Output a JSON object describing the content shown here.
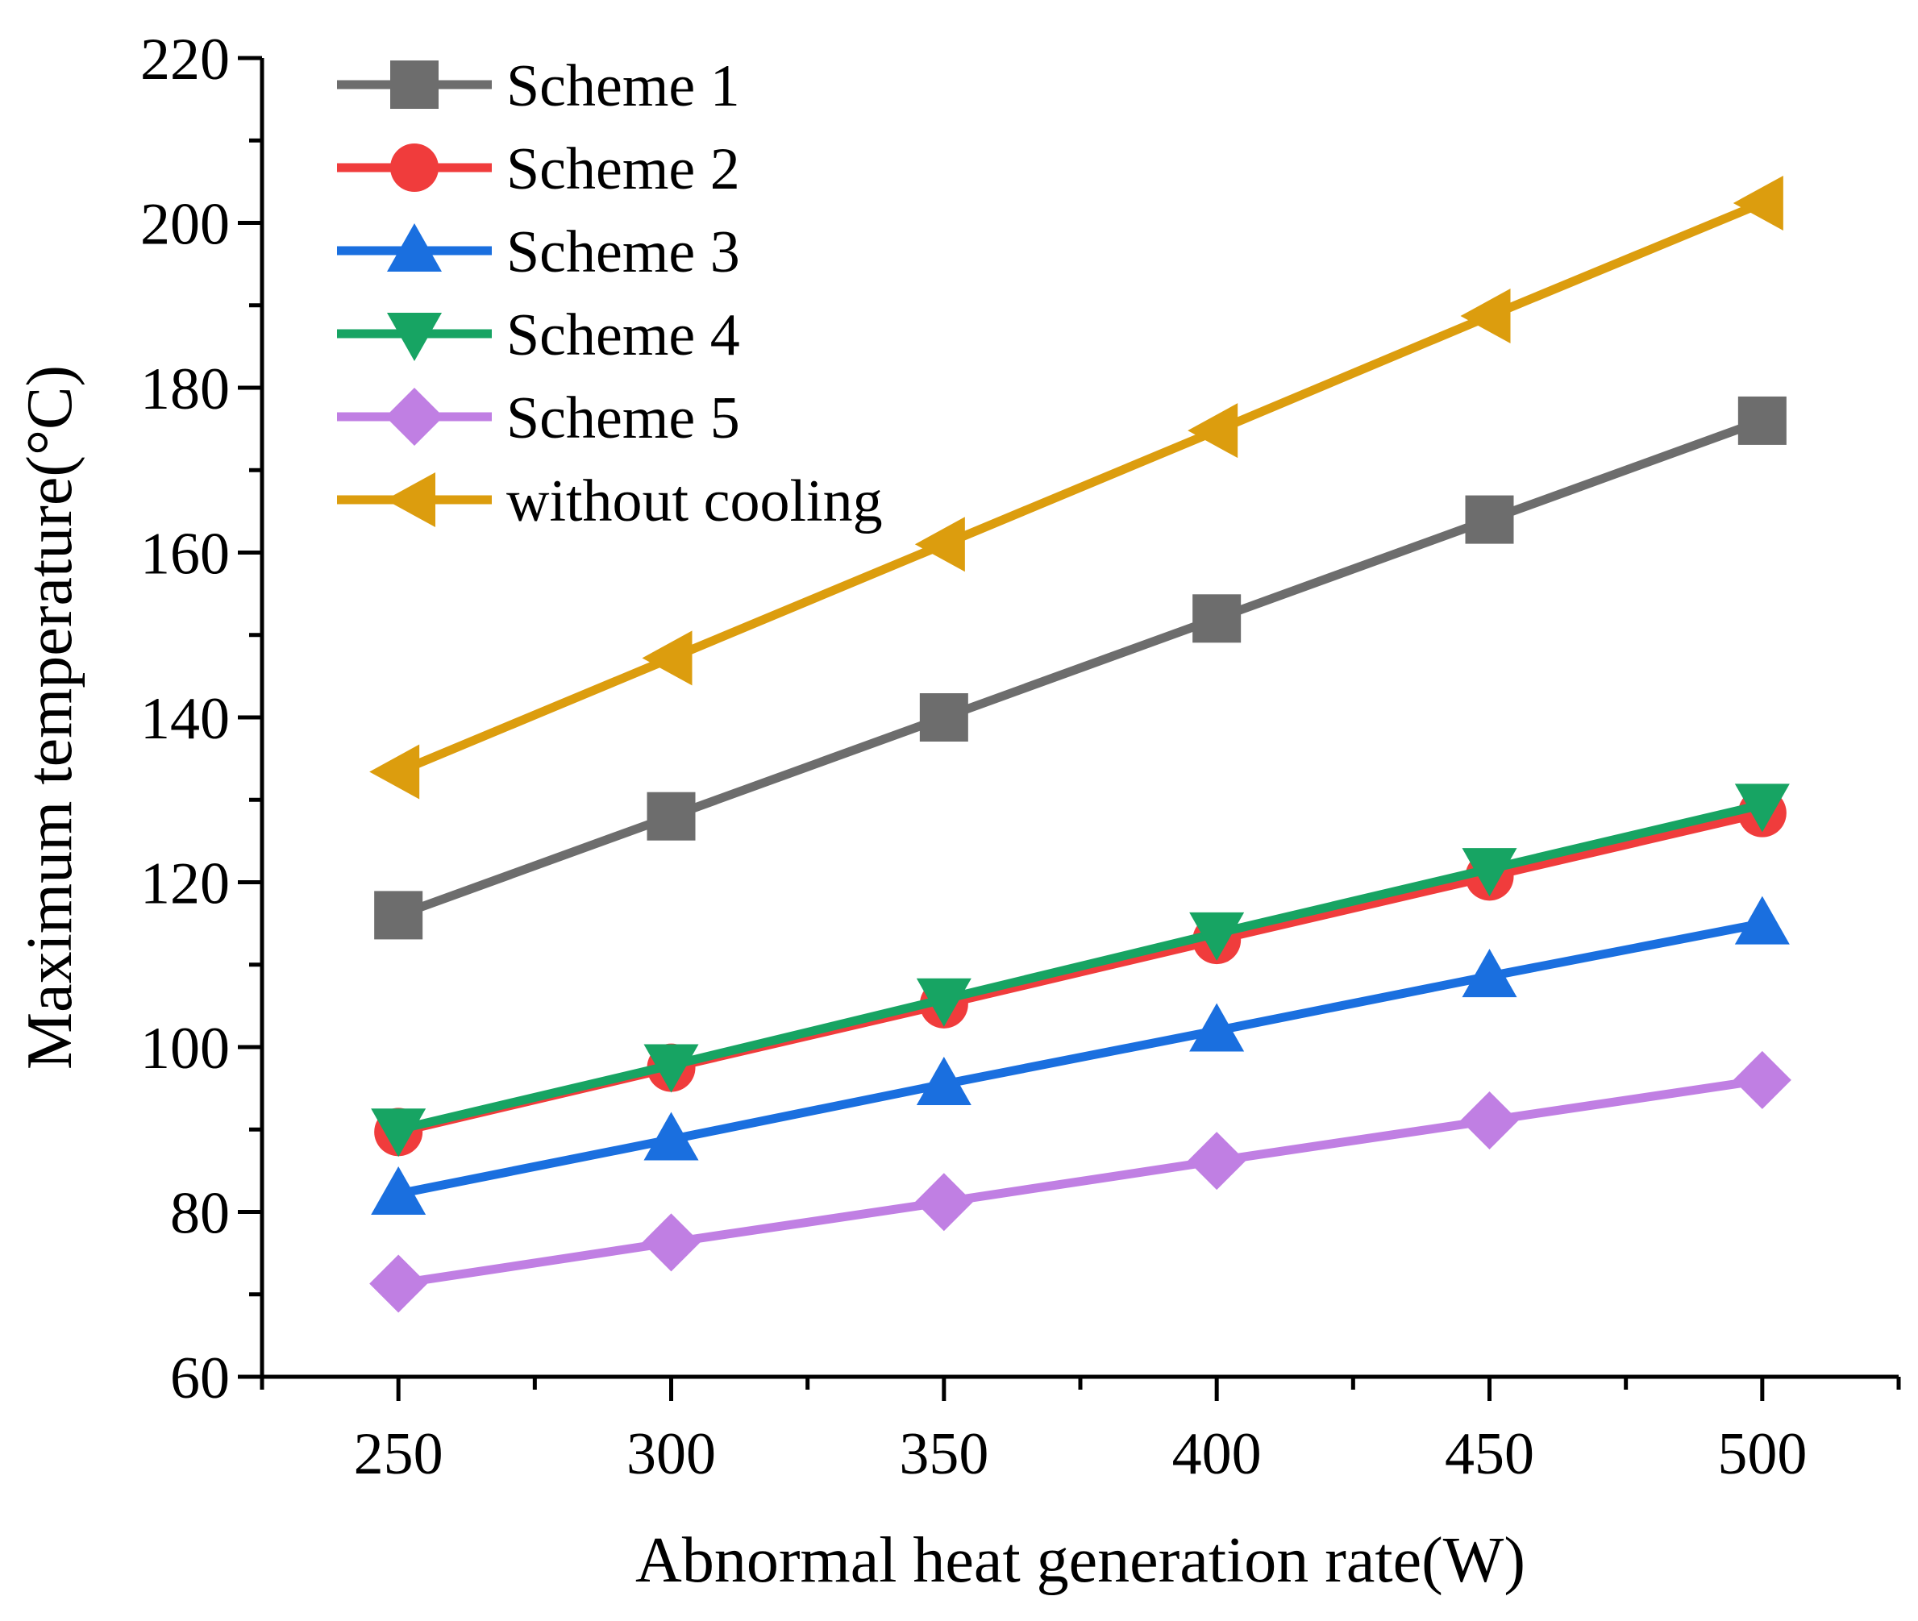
{
  "chart_data": {
    "type": "line",
    "title": "",
    "xlabel": "Abnormal heat generation rate(W)",
    "ylabel": "Maximum temperature(°C)",
    "xlim": [
      225,
      525
    ],
    "ylim": [
      60,
      220
    ],
    "xticks": [
      250,
      300,
      350,
      400,
      450,
      500
    ],
    "xtick_labels": [
      "250",
      "300",
      "350",
      "400",
      "450",
      "500"
    ],
    "yticks": [
      60,
      80,
      100,
      120,
      140,
      160,
      180,
      200,
      220
    ],
    "ytick_labels": [
      "60",
      "80",
      "100",
      "120",
      "140",
      "160",
      "180",
      "200",
      "220"
    ],
    "grid": false,
    "legend_position": "top-left",
    "x": [
      250,
      300,
      350,
      400,
      450,
      500
    ],
    "series": [
      {
        "name": "Scheme 1",
        "color": "#6d6d6d",
        "marker": "square",
        "values": [
          116,
          128,
          140,
          152,
          164,
          176
        ]
      },
      {
        "name": "Scheme 2",
        "color": "#f03c3c",
        "marker": "circle",
        "values": [
          89.7,
          97.5,
          105.2,
          113,
          120.7,
          128.4
        ]
      },
      {
        "name": "Scheme 3",
        "color": "#1a6fdf",
        "marker": "triangle-up",
        "values": [
          82.2,
          88.8,
          95.5,
          102,
          108.6,
          115
        ]
      },
      {
        "name": "Scheme 4",
        "color": "#17a463",
        "marker": "triangle-down",
        "values": [
          90,
          97.8,
          105.8,
          113.8,
          121.6,
          129.4
        ]
      },
      {
        "name": "Scheme 5",
        "color": "#c07fe3",
        "marker": "diamond",
        "values": [
          71.3,
          76.3,
          81.2,
          86.2,
          91.1,
          96
        ]
      },
      {
        "name": "without cooling",
        "color": "#dc9d0e",
        "marker": "triangle-left",
        "values": [
          133.4,
          147.2,
          161,
          174.8,
          188.7,
          202.4
        ]
      }
    ]
  }
}
